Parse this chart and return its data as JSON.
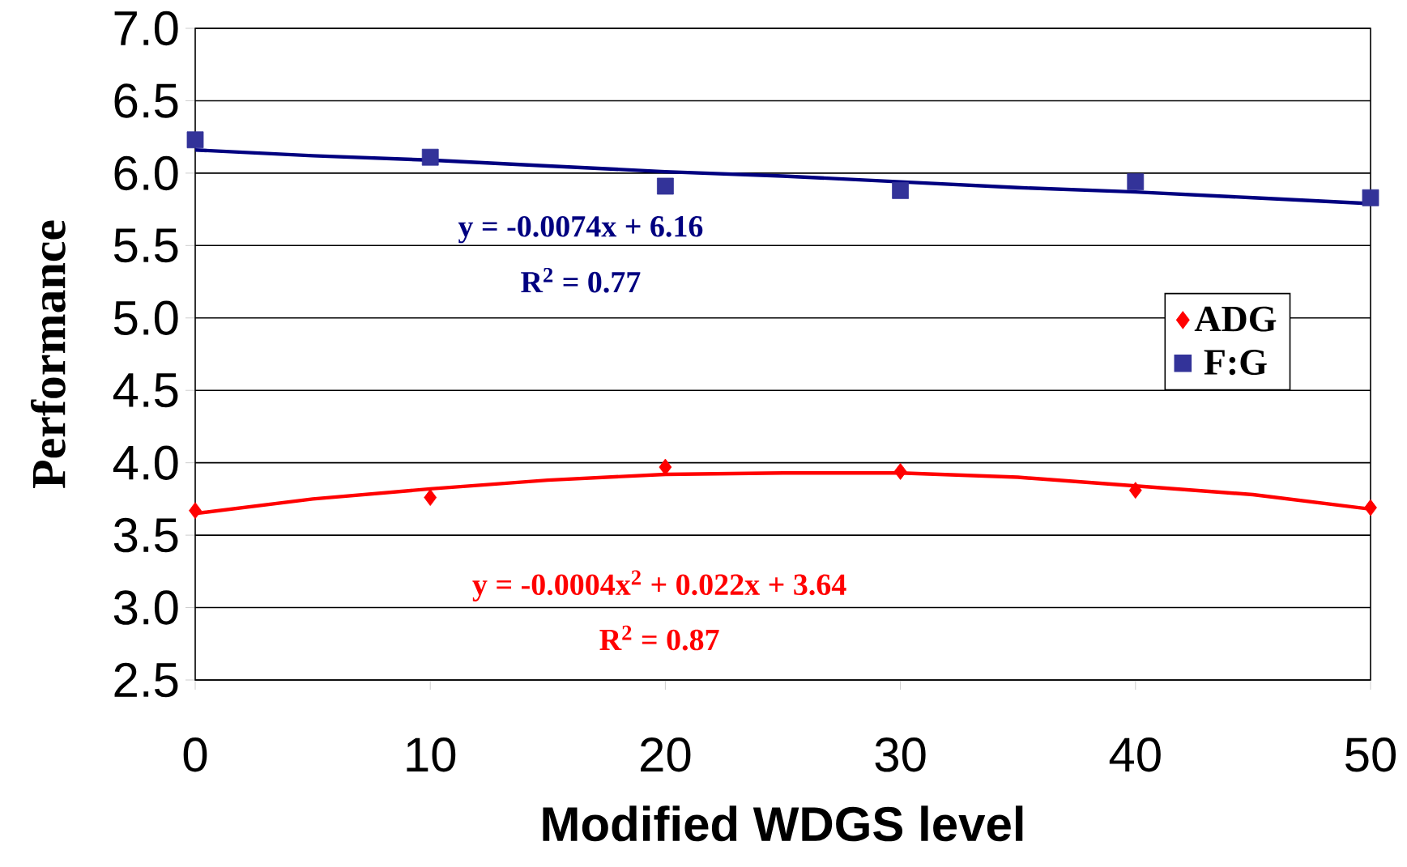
{
  "chart_data": {
    "type": "scatter",
    "xlabel": "Modified WDGS level",
    "ylabel": "Performance",
    "xlim": [
      0,
      50
    ],
    "xticks": [
      0,
      10,
      20,
      30,
      40,
      50
    ],
    "ylim": [
      2.5,
      7.0
    ],
    "yticks": [
      {
        "value": 2.5,
        "label": "2.5"
      },
      {
        "value": 3.0,
        "label": "3.0"
      },
      {
        "value": 3.5,
        "label": "3.5"
      },
      {
        "value": 4.0,
        "label": "4.0"
      },
      {
        "value": 4.5,
        "label": "4.5"
      },
      {
        "value": 5.0,
        "label": "5.0"
      },
      {
        "value": 5.5,
        "label": "5.5"
      },
      {
        "value": 6.0,
        "label": "6.0"
      },
      {
        "value": 6.5,
        "label": "6.5"
      },
      {
        "value": 7.0,
        "label": "7.0"
      }
    ],
    "grid": "y",
    "legend": "right",
    "series": [
      {
        "name": "ADG",
        "marker": "diamond",
        "color": "#ff0000",
        "x": [
          0,
          10,
          20,
          30,
          40,
          50
        ],
        "values": [
          3.67,
          3.76,
          3.97,
          3.94,
          3.81,
          3.69
        ]
      },
      {
        "name": "F:G",
        "marker": "square",
        "color": "#333399",
        "x": [
          0,
          10,
          20,
          30,
          40,
          50
        ],
        "values": [
          6.23,
          6.11,
          5.91,
          5.88,
          5.94,
          5.83
        ]
      },
      {
        "type": "line",
        "line_style": "solid",
        "color": "#ff0000",
        "x": [
          0,
          5,
          10,
          15,
          20,
          25,
          30,
          35,
          40,
          45,
          50
        ],
        "values": [
          3.65,
          3.75,
          3.82,
          3.88,
          3.92,
          3.93,
          3.93,
          3.9,
          3.84,
          3.78,
          3.68
        ]
      },
      {
        "type": "line",
        "line_style": "solid",
        "color": "#000080",
        "x": [
          0,
          5,
          10,
          15,
          20,
          25,
          30,
          35,
          40,
          45,
          50
        ],
        "values": [
          6.16,
          6.12,
          6.09,
          6.05,
          6.01,
          5.98,
          5.94,
          5.9,
          5.87,
          5.83,
          5.79
        ]
      }
    ],
    "annotations": [
      "y = -0.0074x + 6.16",
      "R$^{2}$ = 0.77",
      "y = -0.0004x$^{2}$ + 0.022x + 3.64",
      "R$^{2}$ = 0.87"
    ]
  }
}
